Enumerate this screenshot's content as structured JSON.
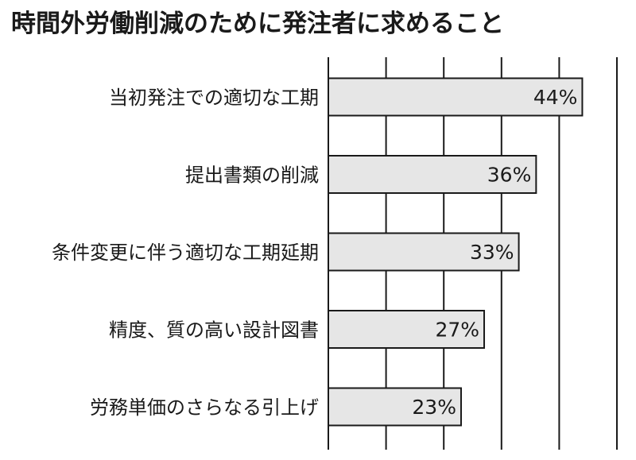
{
  "chart_data": {
    "type": "bar",
    "orientation": "horizontal",
    "title": "時間外労働削減のために発注者に求めること",
    "categories": [
      "当初発注での適切な工期",
      "提出書類の削減",
      "条件変更に伴う適切な工期延期",
      "精度、質の高い設計図書",
      "労務単価のさらなる引上げ"
    ],
    "values": [
      44,
      36,
      33,
      27,
      23
    ],
    "value_labels": [
      "44%",
      "36%",
      "33%",
      "27%",
      "23%"
    ],
    "xlim": [
      0,
      50
    ],
    "grid_step": 10,
    "grid": true,
    "bar_color": "#e6e6e6",
    "bar_edge_color": "#1a1a1a"
  }
}
